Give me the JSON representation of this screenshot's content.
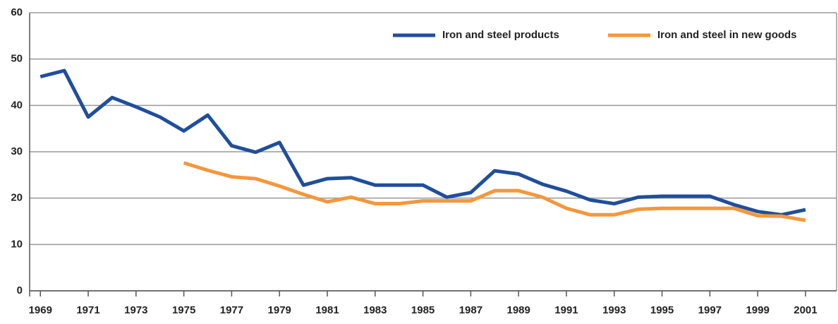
{
  "chart_data": {
    "type": "line",
    "x": [
      1969,
      1970,
      1971,
      1972,
      1973,
      1974,
      1975,
      1976,
      1977,
      1978,
      1979,
      1980,
      1981,
      1982,
      1983,
      1984,
      1985,
      1986,
      1987,
      1988,
      1989,
      1990,
      1991,
      1992,
      1993,
      1994,
      1995,
      1996,
      1997,
      1998,
      1999,
      2000,
      2001
    ],
    "series": [
      {
        "name": "Iron and steel products",
        "color": "#1f4e9c",
        "values": [
          46.2,
          47.5,
          37.5,
          41.7,
          39.7,
          37.5,
          34.5,
          37.9,
          31.3,
          29.9,
          32.0,
          22.8,
          24.2,
          24.4,
          22.8,
          22.8,
          22.8,
          20.2,
          21.2,
          25.9,
          25.2,
          23.0,
          21.5,
          19.6,
          18.8,
          20.2,
          20.4,
          20.4,
          20.4,
          18.6,
          17.1,
          16.4,
          17.5
        ]
      },
      {
        "name": "Iron and steel in new goods",
        "color": "#f5973b",
        "values": [
          null,
          null,
          null,
          null,
          null,
          null,
          27.6,
          26.0,
          24.6,
          24.2,
          22.6,
          20.8,
          19.2,
          20.2,
          18.8,
          18.8,
          19.4,
          19.4,
          19.4,
          21.6,
          21.6,
          20.2,
          17.8,
          16.4,
          16.4,
          17.6,
          17.8,
          17.8,
          17.8,
          17.8,
          16.2,
          16.1,
          15.2
        ]
      }
    ],
    "xlim": [
      1968.55,
      2002.3
    ],
    "xticks": [
      1969,
      1971,
      1973,
      1975,
      1977,
      1979,
      1981,
      1983,
      1985,
      1987,
      1989,
      1991,
      1993,
      1995,
      1997,
      1999,
      2001
    ],
    "ylim": [
      0,
      60
    ],
    "yticks": [
      0,
      10,
      20,
      30,
      40,
      50,
      60
    ],
    "grid": true,
    "legend": "top-right"
  }
}
